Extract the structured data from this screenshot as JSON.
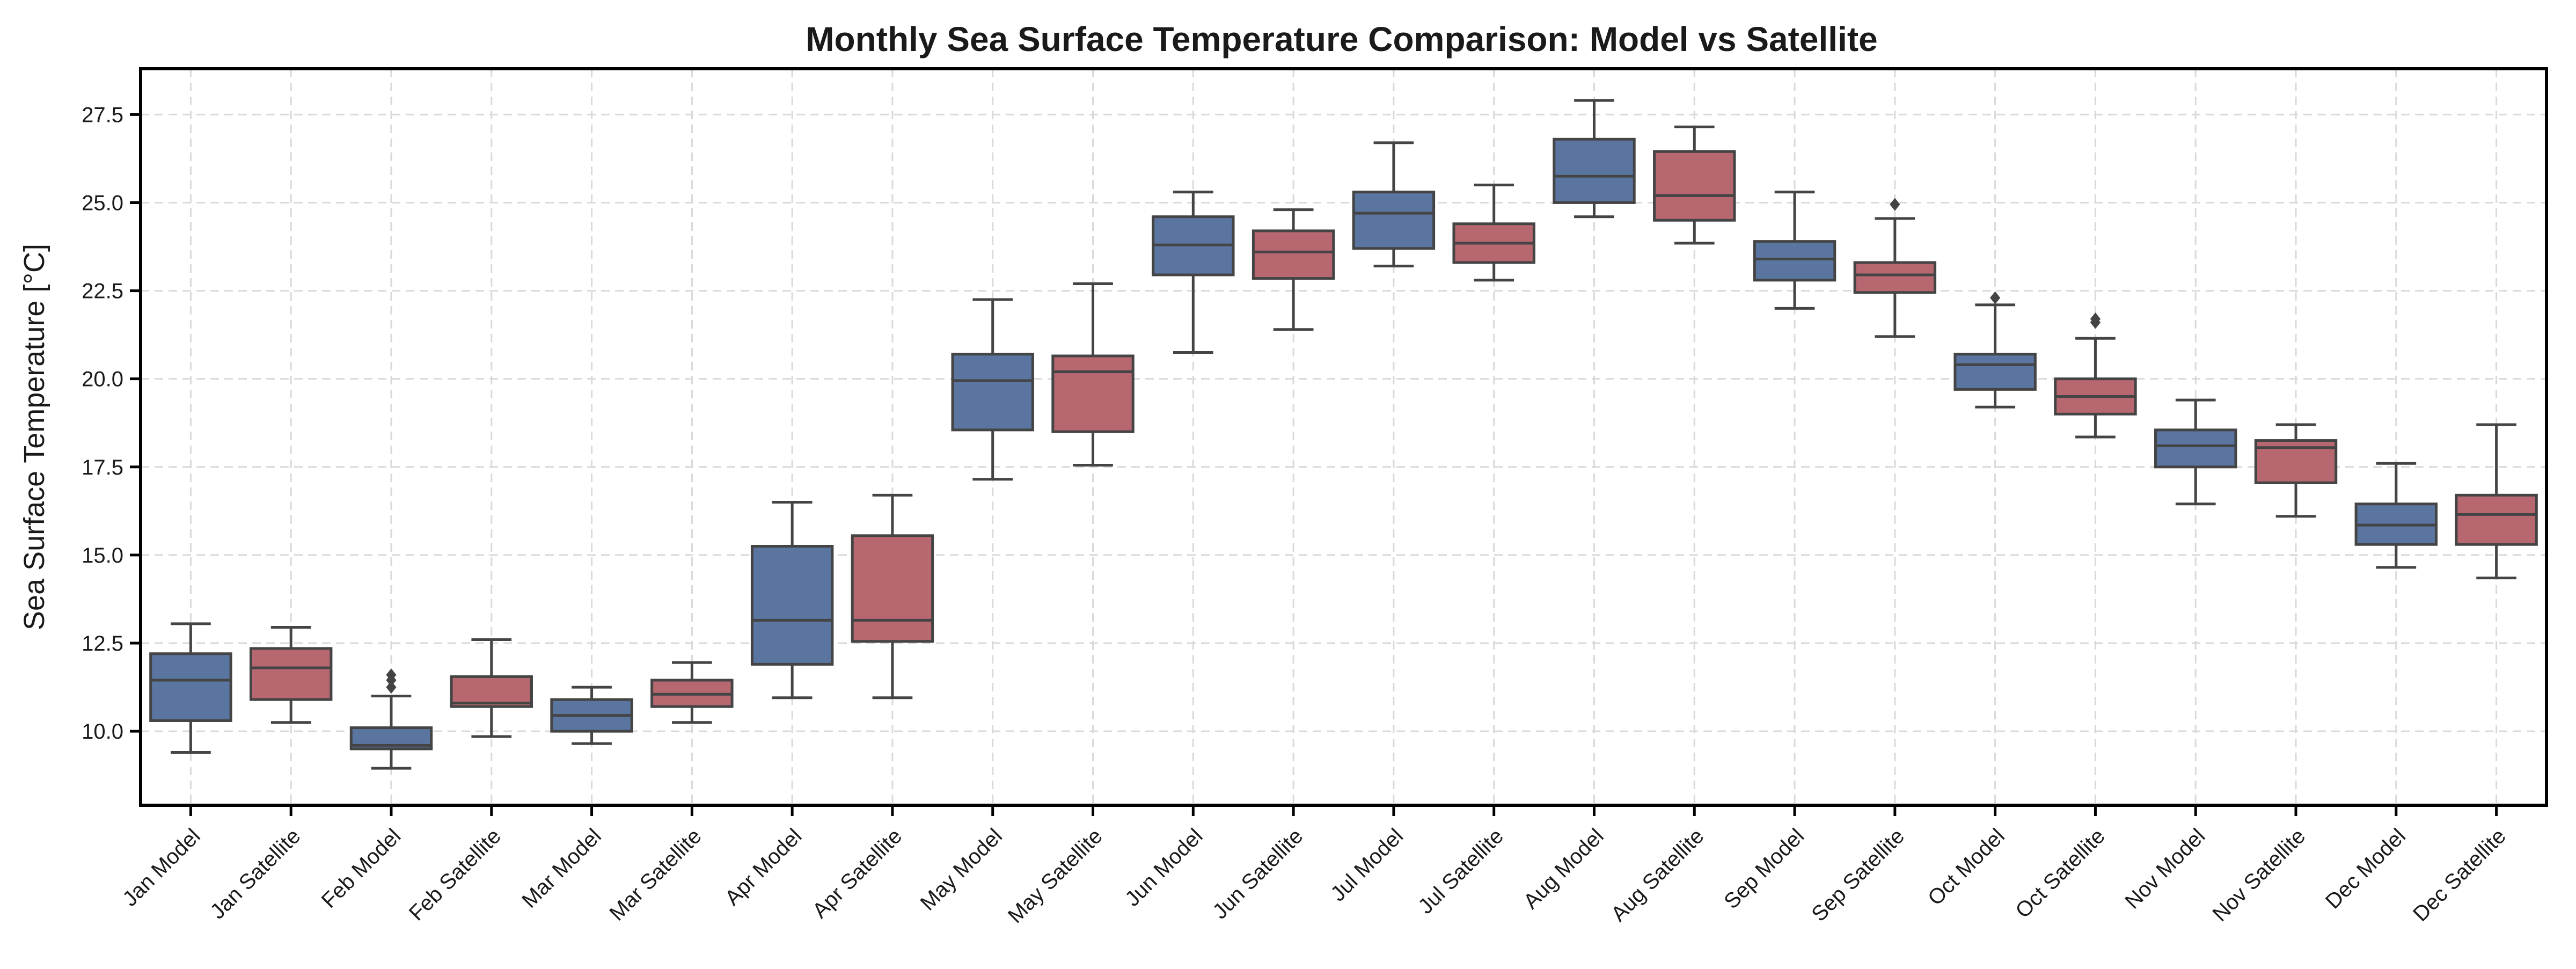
{
  "chart_data": {
    "type": "box",
    "title": "Monthly Sea Surface Temperature Comparison: Model vs Satellite",
    "xlabel": "",
    "ylabel": "Sea Surface Temperature [°C]",
    "ylim": [
      7.9,
      28.8
    ],
    "yticks": [
      10.0,
      12.5,
      15.0,
      17.5,
      20.0,
      22.5,
      25.0,
      27.5
    ],
    "ytick_labels": [
      "10.0",
      "12.5",
      "15.0",
      "17.5",
      "20.0",
      "22.5",
      "25.0",
      "27.5"
    ],
    "grid": true,
    "legend": "none",
    "colors": {
      "model": "#5a75a0",
      "satellite": "#b76770",
      "line": "#444444",
      "grid": "#d9d9d9",
      "frame": "#000000"
    },
    "categories": [
      "Jan Model",
      "Jan Satellite",
      "Feb Model",
      "Feb Satellite",
      "Mar Model",
      "Mar Satellite",
      "Apr Model",
      "Apr Satellite",
      "May Model",
      "May Satellite",
      "Jun Model",
      "Jun Satellite",
      "Jul Model",
      "Jul Satellite",
      "Aug Model",
      "Aug Satellite",
      "Sep Model",
      "Sep Satellite",
      "Oct Model",
      "Oct Satellite",
      "Nov Model",
      "Nov Satellite",
      "Dec Model",
      "Dec Satellite"
    ],
    "boxes": [
      {
        "label": "Jan Model",
        "group": "model",
        "whislo": 9.4,
        "q1": 10.3,
        "med": 11.45,
        "q3": 12.2,
        "whishi": 13.05,
        "fliers": []
      },
      {
        "label": "Jan Satellite",
        "group": "satellite",
        "whislo": 10.25,
        "q1": 10.9,
        "med": 11.8,
        "q3": 12.35,
        "whishi": 12.95,
        "fliers": []
      },
      {
        "label": "Feb Model",
        "group": "model",
        "whislo": 8.95,
        "q1": 9.5,
        "med": 9.6,
        "q3": 10.1,
        "whishi": 11.0,
        "fliers": [
          11.25,
          11.45,
          11.6
        ]
      },
      {
        "label": "Feb Satellite",
        "group": "satellite",
        "whislo": 9.85,
        "q1": 10.7,
        "med": 10.8,
        "q3": 11.55,
        "whishi": 12.6,
        "fliers": []
      },
      {
        "label": "Mar Model",
        "group": "model",
        "whislo": 9.65,
        "q1": 10.0,
        "med": 10.45,
        "q3": 10.9,
        "whishi": 11.25,
        "fliers": []
      },
      {
        "label": "Mar Satellite",
        "group": "satellite",
        "whislo": 10.25,
        "q1": 10.7,
        "med": 11.05,
        "q3": 11.45,
        "whishi": 11.95,
        "fliers": []
      },
      {
        "label": "Apr Model",
        "group": "model",
        "whislo": 10.95,
        "q1": 11.9,
        "med": 13.15,
        "q3": 15.25,
        "whishi": 16.5,
        "fliers": []
      },
      {
        "label": "Apr Satellite",
        "group": "satellite",
        "whislo": 10.95,
        "q1": 12.55,
        "med": 13.15,
        "q3": 15.55,
        "whishi": 16.7,
        "fliers": []
      },
      {
        "label": "May Model",
        "group": "model",
        "whislo": 17.15,
        "q1": 18.55,
        "med": 19.95,
        "q3": 20.7,
        "whishi": 22.25,
        "fliers": []
      },
      {
        "label": "May Satellite",
        "group": "satellite",
        "whislo": 17.55,
        "q1": 18.5,
        "med": 20.2,
        "q3": 20.65,
        "whishi": 22.7,
        "fliers": []
      },
      {
        "label": "Jun Model",
        "group": "model",
        "whislo": 20.75,
        "q1": 22.95,
        "med": 23.8,
        "q3": 24.6,
        "whishi": 25.3,
        "fliers": []
      },
      {
        "label": "Jun Satellite",
        "group": "satellite",
        "whislo": 21.4,
        "q1": 22.85,
        "med": 23.6,
        "q3": 24.2,
        "whishi": 24.8,
        "fliers": []
      },
      {
        "label": "Jul Model",
        "group": "model",
        "whislo": 23.2,
        "q1": 23.7,
        "med": 24.7,
        "q3": 25.3,
        "whishi": 26.7,
        "fliers": []
      },
      {
        "label": "Jul Satellite",
        "group": "satellite",
        "whislo": 22.8,
        "q1": 23.3,
        "med": 23.85,
        "q3": 24.4,
        "whishi": 25.5,
        "fliers": []
      },
      {
        "label": "Aug Model",
        "group": "model",
        "whislo": 24.6,
        "q1": 25.0,
        "med": 25.75,
        "q3": 26.8,
        "whishi": 27.9,
        "fliers": []
      },
      {
        "label": "Aug Satellite",
        "group": "satellite",
        "whislo": 23.85,
        "q1": 24.5,
        "med": 25.2,
        "q3": 26.45,
        "whishi": 27.15,
        "fliers": []
      },
      {
        "label": "Sep Model",
        "group": "model",
        "whislo": 22.0,
        "q1": 22.8,
        "med": 23.4,
        "q3": 23.9,
        "whishi": 25.3,
        "fliers": []
      },
      {
        "label": "Sep Satellite",
        "group": "satellite",
        "whislo": 21.2,
        "q1": 22.45,
        "med": 22.95,
        "q3": 23.3,
        "whishi": 24.55,
        "fliers": [
          24.95
        ]
      },
      {
        "label": "Oct Model",
        "group": "model",
        "whislo": 19.2,
        "q1": 19.7,
        "med": 20.4,
        "q3": 20.7,
        "whishi": 22.1,
        "fliers": [
          22.3
        ]
      },
      {
        "label": "Oct Satellite",
        "group": "satellite",
        "whislo": 18.35,
        "q1": 19.0,
        "med": 19.5,
        "q3": 20.0,
        "whishi": 21.15,
        "fliers": [
          21.6,
          21.7
        ]
      },
      {
        "label": "Nov Model",
        "group": "model",
        "whislo": 16.45,
        "q1": 17.5,
        "med": 18.1,
        "q3": 18.55,
        "whishi": 19.4,
        "fliers": []
      },
      {
        "label": "Nov Satellite",
        "group": "satellite",
        "whislo": 16.1,
        "q1": 17.05,
        "med": 18.05,
        "q3": 18.25,
        "whishi": 18.7,
        "fliers": []
      },
      {
        "label": "Dec Model",
        "group": "model",
        "whislo": 14.65,
        "q1": 15.3,
        "med": 15.85,
        "q3": 16.45,
        "whishi": 17.6,
        "fliers": []
      },
      {
        "label": "Dec Satellite",
        "group": "satellite",
        "whislo": 14.35,
        "q1": 15.3,
        "med": 16.15,
        "q3": 16.7,
        "whishi": 18.7,
        "fliers": []
      }
    ]
  }
}
